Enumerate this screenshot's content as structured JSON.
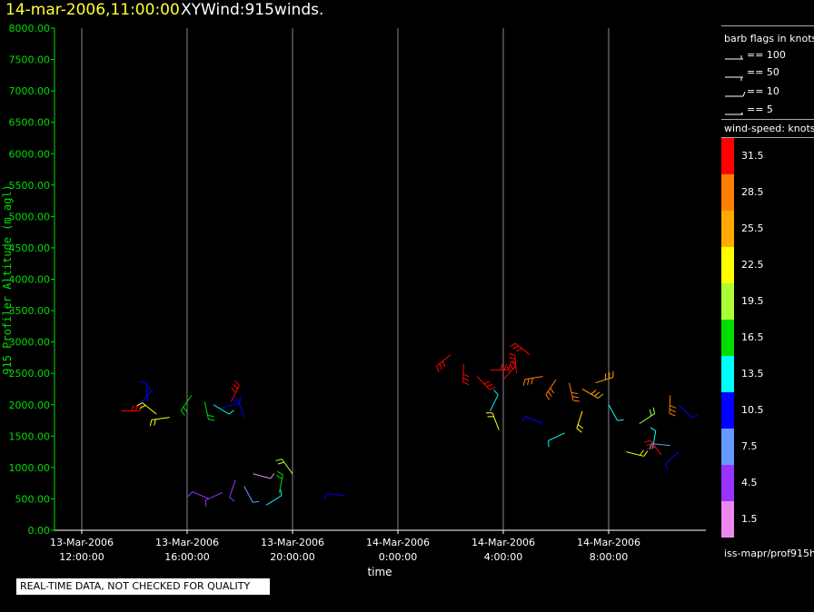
{
  "header": {
    "time": "14-mar-2006,11:00:00",
    "plot_name": "XYWind:915winds."
  },
  "notice": "REAL-TIME DATA, NOT CHECKED FOR QUALITY",
  "legend": {
    "barb_title": "barb flags in knots",
    "barb_items": [
      "== 100",
      "== 50",
      "== 10",
      "== 5"
    ],
    "speed_title": "wind-speed: knots",
    "speed_levels": [
      {
        "label": "31.5",
        "color": "#ff0000"
      },
      {
        "label": "28.5",
        "color": "#ff7f00"
      },
      {
        "label": "25.5",
        "color": "#ffaa00"
      },
      {
        "label": "22.5",
        "color": "#ffff00"
      },
      {
        "label": "19.5",
        "color": "#aaff33"
      },
      {
        "label": "16.5",
        "color": "#00dd00"
      },
      {
        "label": "13.5",
        "color": "#00ffff"
      },
      {
        "label": "10.5",
        "color": "#0000ff"
      },
      {
        "label": "7.5",
        "color": "#6699ff"
      },
      {
        "label": "4.5",
        "color": "#9933ff"
      },
      {
        "label": "1.5",
        "color": "#ee88ee"
      }
    ],
    "source": "iss-mapr/prof915h"
  },
  "chart_data": {
    "type": "scatter",
    "xlabel": "time",
    "ylabel": "915 Profiler Altitude (m agl)",
    "ylim": [
      0,
      8000
    ],
    "yticks": [
      "0.00",
      "500.00",
      "1000.00",
      "1500.00",
      "2000.00",
      "2500.00",
      "3000.00",
      "3500.00",
      "4000.00",
      "4500.00",
      "5000.00",
      "5500.00",
      "6000.00",
      "6500.00",
      "7000.00",
      "7500.00",
      "8000.00"
    ],
    "xticks": [
      {
        "date": "13-Mar-2006",
        "time": "12:00:00"
      },
      {
        "date": "13-Mar-2006",
        "time": "16:00:00"
      },
      {
        "date": "13-Mar-2006",
        "time": "20:00:00"
      },
      {
        "date": "14-Mar-2006",
        "time": "0:00:00"
      },
      {
        "date": "14-Mar-2006",
        "time": "4:00:00"
      },
      {
        "date": "14-Mar-2006",
        "time": "8:00:00"
      }
    ],
    "grid": "vertical",
    "colors": {
      "axis": "#00dd00",
      "grid": "#888888"
    },
    "series": [
      {
        "time": "13-Mar-2006 13:30",
        "alt": 1900,
        "speed": 31
      },
      {
        "time": "13-Mar-2006 14:10",
        "alt": 2000,
        "speed": 10
      },
      {
        "time": "13-Mar-2006 14:30",
        "alt": 2050,
        "speed": 10
      },
      {
        "time": "13-Mar-2006 14:50",
        "alt": 1850,
        "speed": 22
      },
      {
        "time": "13-Mar-2006 15:20",
        "alt": 1800,
        "speed": 22
      },
      {
        "time": "13-Mar-2006 16:10",
        "alt": 2150,
        "speed": 16
      },
      {
        "time": "13-Mar-2006 16:40",
        "alt": 2050,
        "speed": 15
      },
      {
        "time": "13-Mar-2006 17:00",
        "alt": 2000,
        "speed": 13
      },
      {
        "time": "13-Mar-2006 17:20",
        "alt": 1950,
        "speed": 10
      },
      {
        "time": "13-Mar-2006 17:40",
        "alt": 2050,
        "speed": 30
      },
      {
        "time": "13-Mar-2006 18:10",
        "alt": 1800,
        "speed": 10
      },
      {
        "time": "13-Mar-2006 16:50",
        "alt": 500,
        "speed": 4
      },
      {
        "time": "13-Mar-2006 17:20",
        "alt": 600,
        "speed": 3
      },
      {
        "time": "13-Mar-2006 17:50",
        "alt": 800,
        "speed": 5
      },
      {
        "time": "13-Mar-2006 18:10",
        "alt": 700,
        "speed": 7
      },
      {
        "time": "13-Mar-2006 18:30",
        "alt": 900,
        "speed": 2
      },
      {
        "time": "13-Mar-2006 19:00",
        "alt": 400,
        "speed": 12
      },
      {
        "time": "13-Mar-2006 19:30",
        "alt": 600,
        "speed": 16
      },
      {
        "time": "13-Mar-2006 20:00",
        "alt": 900,
        "speed": 18
      },
      {
        "time": "13-Mar-2006 22:00",
        "alt": 550,
        "speed": 11
      },
      {
        "time": "14-Mar-2006 2:00",
        "alt": 2800,
        "speed": 31
      },
      {
        "time": "14-Mar-2006 2:30",
        "alt": 2650,
        "speed": 31
      },
      {
        "time": "14-Mar-2006 3:00",
        "alt": 2450,
        "speed": 31
      },
      {
        "time": "14-Mar-2006 3:30",
        "alt": 2550,
        "speed": 31
      },
      {
        "time": "14-Mar-2006 4:00",
        "alt": 2400,
        "speed": 30
      },
      {
        "time": "14-Mar-2006 4:30",
        "alt": 2500,
        "speed": 30
      },
      {
        "time": "14-Mar-2006 5:00",
        "alt": 2800,
        "speed": 30
      },
      {
        "time": "14-Mar-2006 5:30",
        "alt": 2450,
        "speed": 29
      },
      {
        "time": "14-Mar-2006 6:00",
        "alt": 2400,
        "speed": 28
      },
      {
        "time": "14-Mar-2006 6:30",
        "alt": 2350,
        "speed": 27
      },
      {
        "time": "14-Mar-2006 7:00",
        "alt": 2250,
        "speed": 26
      },
      {
        "time": "14-Mar-2006 7:30",
        "alt": 2350,
        "speed": 25
      },
      {
        "time": "14-Mar-2006 3:30",
        "alt": 1900,
        "speed": 13
      },
      {
        "time": "14-Mar-2006 3:50",
        "alt": 1600,
        "speed": 22
      },
      {
        "time": "14-Mar-2006 5:30",
        "alt": 1700,
        "speed": 10
      },
      {
        "time": "14-Mar-2006 6:20",
        "alt": 1550,
        "speed": 12
      },
      {
        "time": "14-Mar-2006 7:00",
        "alt": 1900,
        "speed": 21
      },
      {
        "time": "14-Mar-2006 8:00",
        "alt": 2000,
        "speed": 13
      },
      {
        "time": "14-Mar-2006 8:40",
        "alt": 1250,
        "speed": 23
      },
      {
        "time": "14-Mar-2006 9:10",
        "alt": 1700,
        "speed": 18
      },
      {
        "time": "14-Mar-2006 9:40",
        "alt": 1300,
        "speed": 14
      },
      {
        "time": "14-Mar-2006 10:00",
        "alt": 1200,
        "speed": 31
      },
      {
        "time": "14-Mar-2006 10:20",
        "alt": 1350,
        "speed": 8
      },
      {
        "time": "14-Mar-2006 10:40",
        "alt": 1250,
        "speed": 11
      },
      {
        "time": "14-Mar-2006 10:20",
        "alt": 2150,
        "speed": 27
      },
      {
        "time": "14-Mar-2006 10:40",
        "alt": 2000,
        "speed": 11
      }
    ]
  }
}
